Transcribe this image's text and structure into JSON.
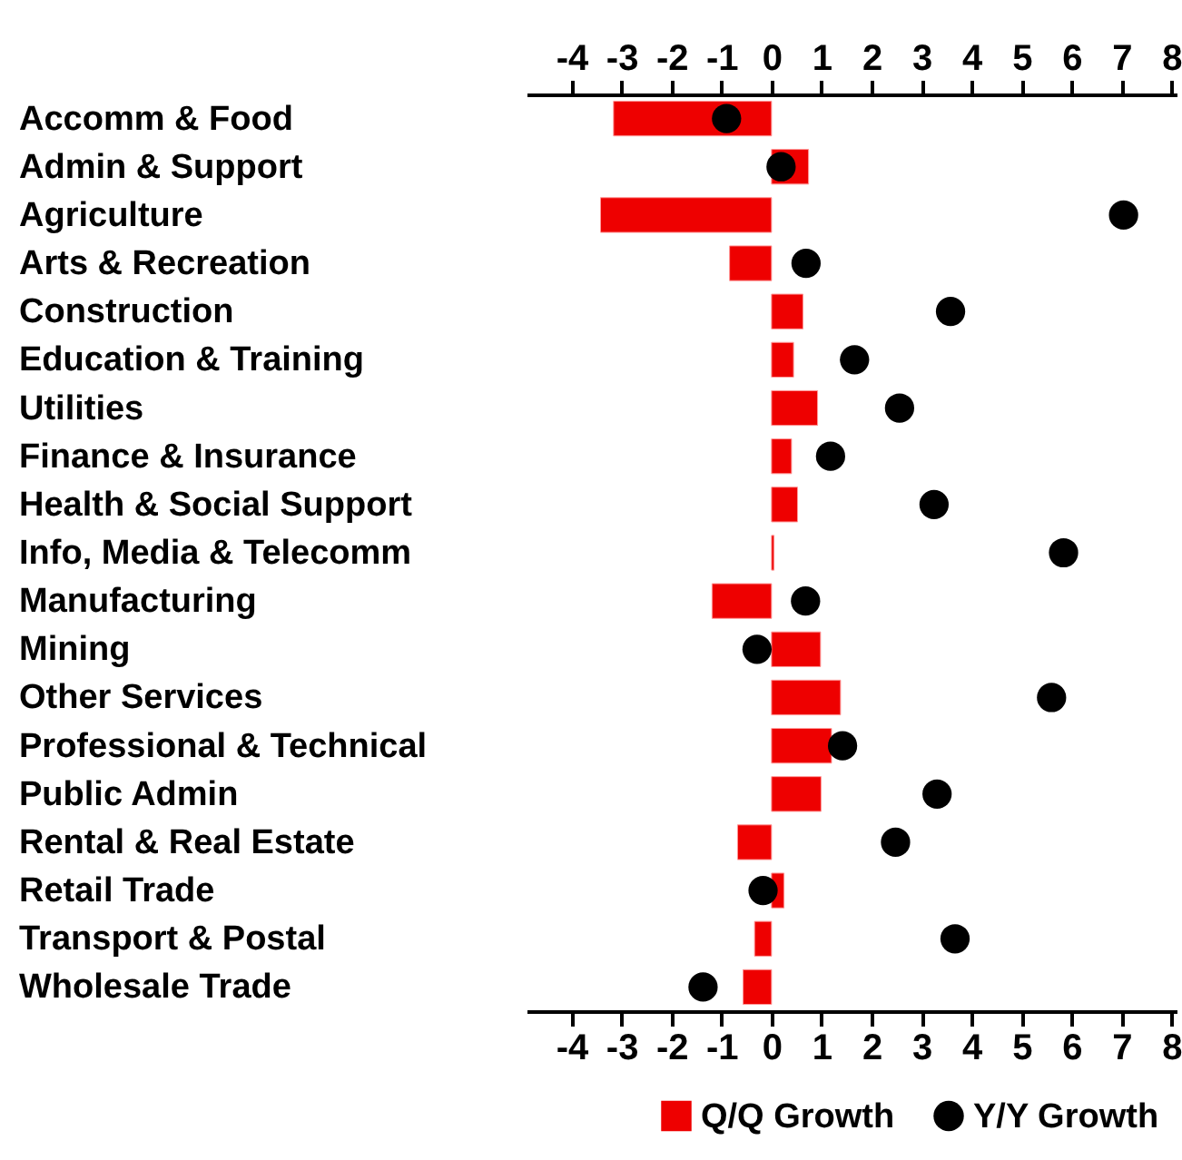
{
  "chart_data": {
    "type": "bar",
    "orientation": "horizontal",
    "categories": [
      "Accomm & Food",
      "Admin & Support",
      "Agriculture",
      "Arts & Recreation",
      "Construction",
      "Education & Training",
      "Utilities",
      "Finance & Insurance",
      "Health & Social Support",
      "Info, Media & Telecomm",
      "Manufacturing",
      "Mining",
      "Other Services",
      "Professional & Technical",
      "Public Admin",
      "Rental & Real Estate",
      "Retail Trade",
      "Transport & Postal",
      "Wholesale Trade"
    ],
    "series": [
      {
        "name": "Q/Q Growth",
        "color": "#ee0000",
        "values": [
          -3.16,
          0.74,
          -3.42,
          -0.84,
          0.63,
          0.44,
          0.92,
          0.4,
          0.52,
          0.05,
          -1.19,
          0.98,
          1.38,
          1.2,
          0.99,
          -0.68,
          0.25,
          -0.34,
          -0.57
        ]
      },
      {
        "name": "Y/Y Growth",
        "type": "scatter",
        "color": "#000000",
        "values": [
          -0.9,
          0.19,
          7.04,
          0.69,
          3.58,
          1.66,
          2.56,
          1.18,
          3.25,
          5.84,
          0.68,
          -0.29,
          5.6,
          1.42,
          3.31,
          2.48,
          -0.17,
          3.67,
          -1.37
        ]
      }
    ],
    "xlim": [
      -4.9,
      8.1
    ],
    "xticks": [
      -4,
      -3,
      -2,
      -1,
      0,
      1,
      2,
      3,
      4,
      5,
      6,
      7,
      8
    ],
    "x2lim": [
      -4.9,
      8.1
    ],
    "x2ticks": [
      -4,
      -3,
      -2,
      -1,
      0,
      1,
      2,
      3,
      4,
      5,
      6,
      7,
      8
    ],
    "marker": "circle",
    "grid": false,
    "legend": "bottom right"
  }
}
